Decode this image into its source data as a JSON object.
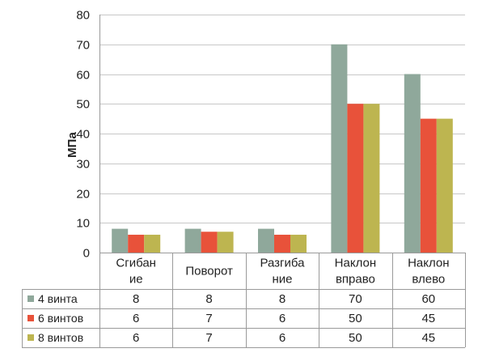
{
  "chart_data": {
    "type": "bar",
    "ylabel": "МПа",
    "ylim": [
      0,
      80
    ],
    "yticks": [
      0,
      10,
      20,
      30,
      40,
      50,
      60,
      70,
      80
    ],
    "grid": true,
    "legend": "table-left",
    "categories": [
      [
        "Сгибан",
        "ие"
      ],
      [
        "Поворот"
      ],
      [
        "Разгиба",
        "ние"
      ],
      [
        "Наклон",
        "вправо"
      ],
      [
        "Наклон",
        "влево"
      ]
    ],
    "series": [
      {
        "name": "4 винта",
        "color": "#8fa89b",
        "values": [
          8,
          8,
          8,
          70,
          60
        ]
      },
      {
        "name": "6 винтов",
        "color": "#e8523a",
        "values": [
          6,
          7,
          6,
          50,
          45
        ]
      },
      {
        "name": "8 винтов",
        "color": "#bdb550",
        "values": [
          6,
          7,
          6,
          50,
          45
        ]
      }
    ]
  }
}
